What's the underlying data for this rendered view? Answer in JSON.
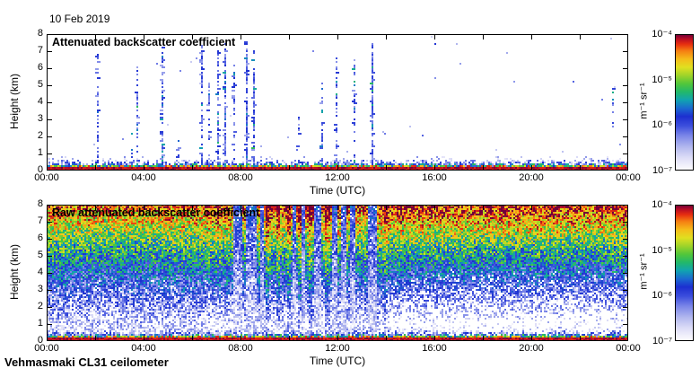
{
  "page": {
    "date_label": "10 Feb 2019",
    "footer": "Vehmasmaki CL31 ceilometer",
    "background": "#ffffff"
  },
  "colorbar": {
    "unit_label": "m⁻¹ sr⁻¹",
    "tick_labels": [
      "10⁻⁴",
      "10⁻⁵",
      "10⁻⁶",
      "10⁻⁷"
    ],
    "scale": "log",
    "top_color": "#70003a",
    "bottom_color": "#ffffff"
  },
  "chart_data": [
    {
      "type": "heatmap",
      "title": "Attenuated backscatter coefficient",
      "xlabel": "Time (UTC)",
      "ylabel": "Height (km)",
      "x_tick_labels": [
        "00:00",
        "04:00",
        "08:00",
        "12:00",
        "16:00",
        "20:00",
        "00:00"
      ],
      "x_tick_hours": [
        0,
        4,
        8,
        12,
        16,
        20,
        24
      ],
      "y_tick_labels": [
        "0",
        "1",
        "2",
        "3",
        "4",
        "5",
        "6",
        "7",
        "8"
      ],
      "xlim_hours": [
        0,
        24
      ],
      "ylim_km": [
        0,
        8
      ],
      "value_range_m1sr1": [
        "1e-7",
        "1e-4"
      ],
      "background": "white (below detection)",
      "surface_layer": {
        "top_km": 0.35,
        "description": "rainbow speckle band with dark-red base"
      },
      "precip_streaks": [
        {
          "t": 2.1,
          "top": 7.0,
          "bot": 0.4,
          "d": 0.5
        },
        {
          "t": 3.45,
          "top": 2.3,
          "bot": 0.5,
          "d": 0.4
        },
        {
          "t": 3.7,
          "top": 6.4,
          "bot": 0.5,
          "d": 0.5
        },
        {
          "t": 4.75,
          "top": 7.3,
          "bot": 0.4,
          "d": 0.55
        },
        {
          "t": 5.4,
          "top": 1.8,
          "bot": 0.5,
          "d": 0.35
        },
        {
          "t": 6.4,
          "top": 7.4,
          "bot": 0.4,
          "d": 0.7
        },
        {
          "t": 6.65,
          "top": 5.2,
          "bot": 0.4,
          "d": 0.4
        },
        {
          "t": 7.0,
          "top": 7.1,
          "bot": 0.4,
          "d": 0.7
        },
        {
          "t": 7.35,
          "top": 7.6,
          "bot": 0.4,
          "d": 0.75
        },
        {
          "t": 7.7,
          "top": 6.2,
          "bot": 0.4,
          "d": 0.5
        },
        {
          "t": 8.25,
          "top": 7.6,
          "bot": 0.4,
          "d": 0.85
        },
        {
          "t": 8.5,
          "top": 7.2,
          "bot": 0.4,
          "d": 0.6
        },
        {
          "t": 10.4,
          "top": 3.3,
          "bot": 1.2,
          "d": 0.3
        },
        {
          "t": 11.3,
          "top": 5.6,
          "bot": 0.6,
          "d": 0.35
        },
        {
          "t": 11.9,
          "top": 7.1,
          "bot": 0.4,
          "d": 0.5
        },
        {
          "t": 12.7,
          "top": 6.6,
          "bot": 0.4,
          "d": 0.45
        },
        {
          "t": 13.4,
          "top": 7.5,
          "bot": 0.4,
          "d": 0.75
        },
        {
          "t": 16.0,
          "top": 7.5,
          "bot": 5.2,
          "d": 0.25
        },
        {
          "t": 23.3,
          "top": 5.0,
          "bot": 2.0,
          "d": 0.3
        }
      ]
    },
    {
      "type": "heatmap",
      "title": "Raw attenuated backscatter coefficient",
      "xlabel": "Time (UTC)",
      "ylabel": "Height (km)",
      "x_tick_labels": [
        "00:00",
        "04:00",
        "08:00",
        "12:00",
        "16:00",
        "20:00",
        "00:00"
      ],
      "x_tick_hours": [
        0,
        4,
        8,
        12,
        16,
        20,
        24
      ],
      "y_tick_labels": [
        "0",
        "1",
        "2",
        "3",
        "4",
        "5",
        "6",
        "7",
        "8"
      ],
      "xlim_hours": [
        0,
        24
      ],
      "ylim_km": [
        0,
        8
      ],
      "value_range_m1sr1": [
        "1e-7",
        "1e-4"
      ],
      "noise_gradient": "white near surface through blue/green mid-levels to orange/red at 8 km",
      "rain_columns_hours": [
        [
          7.7,
          8.1
        ],
        [
          8.25,
          8.7
        ],
        [
          8.8,
          9.0
        ],
        [
          10.15,
          10.3
        ],
        [
          10.55,
          10.7
        ],
        [
          11.05,
          11.35
        ],
        [
          11.8,
          12.0
        ],
        [
          12.15,
          12.35
        ],
        [
          12.55,
          12.75
        ],
        [
          13.25,
          13.65
        ]
      ],
      "enhanced_columns_hours": [
        [
          9.05,
          9.2
        ],
        [
          9.5,
          9.65
        ],
        [
          9.9,
          10.05
        ],
        [
          10.35,
          10.5
        ],
        [
          10.8,
          11.0
        ],
        [
          11.45,
          11.7
        ],
        [
          13.9,
          14.05
        ]
      ],
      "surface_layer": {
        "top_km": 0.35,
        "description": "rainbow speckle band with dark-red base"
      }
    }
  ],
  "layout_hints": {
    "panels": "two stacked time-height panels sharing x axis range",
    "colorbar_position": "right of each panel, labels on left of bar",
    "grid": "off"
  }
}
